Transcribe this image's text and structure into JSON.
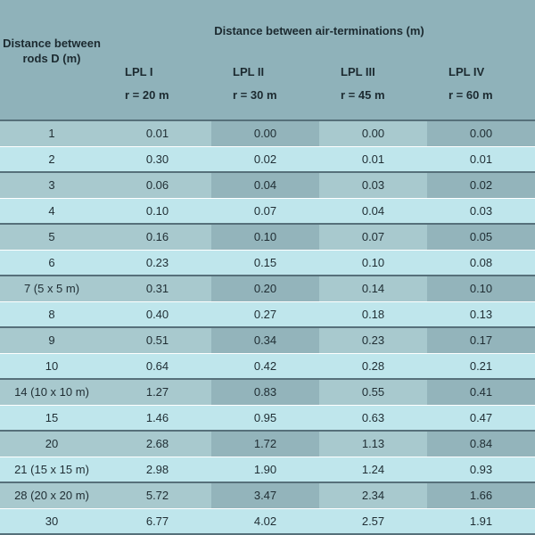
{
  "header": {
    "row_title": "Distance between rods D (m)",
    "group_title": "Distance between air-terminations (m)",
    "levels": [
      {
        "name": "LPL I",
        "r": "r = 20 m"
      },
      {
        "name": "LPL II",
        "r": "r = 30 m"
      },
      {
        "name": "LPL III",
        "r": "r = 45 m"
      },
      {
        "name": "LPL IV",
        "r": "r = 60 m"
      }
    ]
  },
  "rows": [
    {
      "d": "1",
      "v": [
        "0.01",
        "0.00",
        "0.00",
        "0.00"
      ]
    },
    {
      "d": "2",
      "v": [
        "0.30",
        "0.02",
        "0.01",
        "0.01"
      ]
    },
    {
      "d": "3",
      "v": [
        "0.06",
        "0.04",
        "0.03",
        "0.02"
      ]
    },
    {
      "d": "4",
      "v": [
        "0.10",
        "0.07",
        "0.04",
        "0.03"
      ]
    },
    {
      "d": "5",
      "v": [
        "0.16",
        "0.10",
        "0.07",
        "0.05"
      ]
    },
    {
      "d": "6",
      "v": [
        "0.23",
        "0.15",
        "0.10",
        "0.08"
      ]
    },
    {
      "d": "7 (5 x 5 m)",
      "v": [
        "0.31",
        "0.20",
        "0.14",
        "0.10"
      ]
    },
    {
      "d": "8",
      "v": [
        "0.40",
        "0.27",
        "0.18",
        "0.13"
      ]
    },
    {
      "d": "9",
      "v": [
        "0.51",
        "0.34",
        "0.23",
        "0.17"
      ]
    },
    {
      "d": "10",
      "v": [
        "0.64",
        "0.42",
        "0.28",
        "0.21"
      ]
    },
    {
      "d": "14 (10 x 10 m)",
      "v": [
        "1.27",
        "0.83",
        "0.55",
        "0.41"
      ]
    },
    {
      "d": "15",
      "v": [
        "1.46",
        "0.95",
        "0.63",
        "0.47"
      ]
    },
    {
      "d": "20",
      "v": [
        "2.68",
        "1.72",
        "1.13",
        "0.84"
      ]
    },
    {
      "d": "21 (15 x 15 m)",
      "v": [
        "2.98",
        "1.90",
        "1.24",
        "0.93"
      ]
    },
    {
      "d": "28 (20 x 20 m)",
      "v": [
        "5.72",
        "3.47",
        "2.34",
        "1.66"
      ]
    },
    {
      "d": "30",
      "v": [
        "6.77",
        "4.02",
        "2.57",
        "1.91"
      ]
    }
  ]
}
